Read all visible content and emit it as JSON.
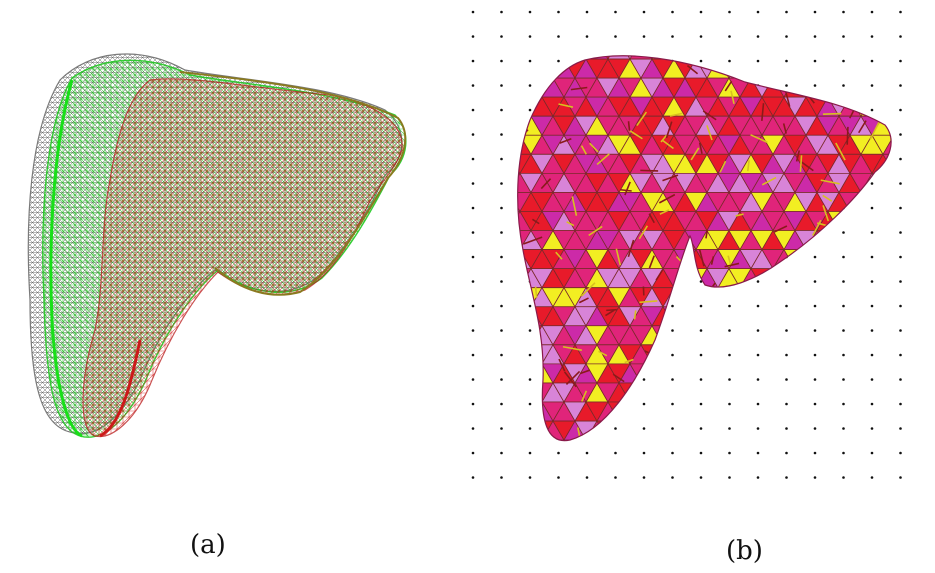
{
  "figure": {
    "panel_a_label": "(a)",
    "panel_b_label": "(b)"
  },
  "colors": {
    "mesh_gray": "#8a8a8a",
    "mesh_green": "#22dd22",
    "mesh_red": "#dd1a1a",
    "mesh_olive": "#8a7a20",
    "tet_pink": "#e0247a",
    "tet_magenta": "#cc2aa8",
    "tet_red": "#e81a2a",
    "tet_yellow": "#f2ee22",
    "tet_violet": "#d884d8",
    "grid_dot": "#111111"
  },
  "icons": {
    "panel_a_image": "liver-surface-mesh-overlay",
    "panel_b_image": "liver-tetrahedral-mesh"
  }
}
